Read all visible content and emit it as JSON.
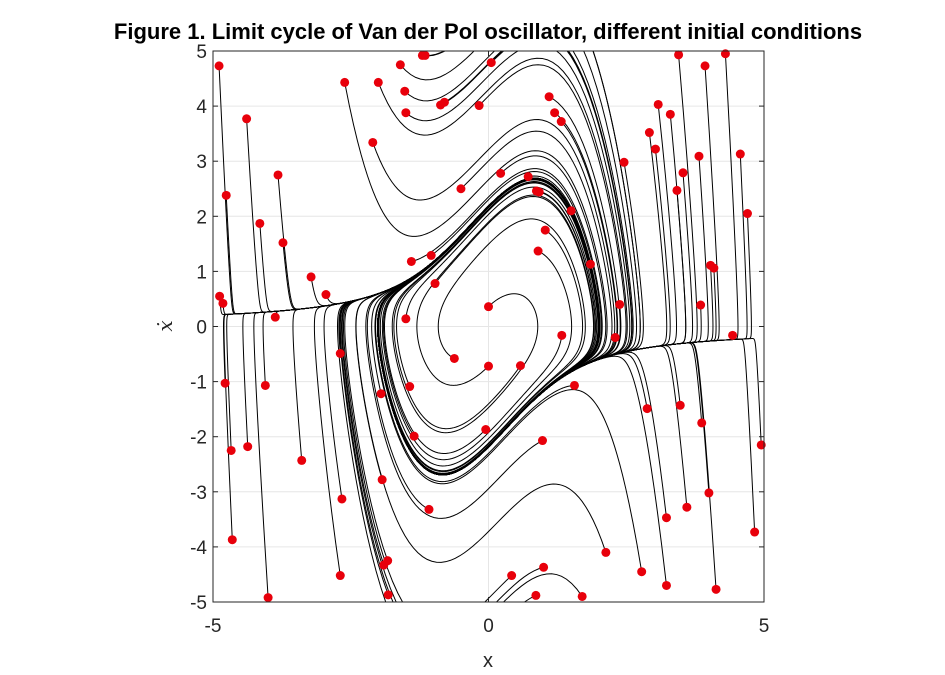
{
  "chart_data": {
    "type": "line",
    "title": "Figure 1. Limit cycle of Van der Pol oscillator, different initial conditions",
    "xlabel": "x",
    "ylabel": "ẋ",
    "xlim": [
      -5,
      5
    ],
    "ylim": [
      -5,
      5
    ],
    "xticks": [
      "-5",
      "0",
      "5"
    ],
    "yticks": [
      "5",
      "4",
      "3",
      "2",
      "1",
      "0",
      "-1",
      "-2",
      "-3",
      "-4",
      "-5"
    ],
    "grid": true,
    "legend": "none",
    "mu": 1,
    "line_color": "#000000",
    "marker_color": "#e8000b",
    "series": [
      {
        "label": "initial conditions",
        "points": [
          [
            -4.89,
            4.73
          ],
          [
            -4.88,
            0.55
          ],
          [
            -4.82,
            0.42
          ],
          [
            -4.76,
            2.38
          ],
          [
            -4.78,
            -1.03
          ],
          [
            -4.67,
            -2.25
          ],
          [
            -4.65,
            -3.87
          ],
          [
            -4.39,
            3.77
          ],
          [
            -4.37,
            -2.18
          ],
          [
            -4.15,
            1.87
          ],
          [
            -4.05,
            -1.07
          ],
          [
            -4.0,
            -4.92
          ],
          [
            -3.82,
            2.75
          ],
          [
            -3.87,
            0.17
          ],
          [
            -3.73,
            1.52
          ],
          [
            -3.39,
            -2.43
          ],
          [
            -3.22,
            0.9
          ],
          [
            -2.95,
            0.58
          ],
          [
            -2.69,
            -0.49
          ],
          [
            -2.66,
            -3.13
          ],
          [
            -2.69,
            -4.52
          ],
          [
            -2.61,
            4.43
          ],
          [
            -2.1,
            3.34
          ],
          [
            -2.0,
            4.43
          ],
          [
            -1.95,
            -1.22
          ],
          [
            -1.93,
            -2.78
          ],
          [
            -1.9,
            -4.33
          ],
          [
            -1.83,
            -4.25
          ],
          [
            -1.82,
            -4.87
          ],
          [
            -1.6,
            4.75
          ],
          [
            -1.52,
            4.27
          ],
          [
            -1.5,
            3.88
          ],
          [
            -1.5,
            0.14
          ],
          [
            -1.43,
            -1.09
          ],
          [
            -1.4,
            1.18
          ],
          [
            -1.35,
            -1.99
          ],
          [
            -1.2,
            4.92
          ],
          [
            -1.15,
            4.92
          ],
          [
            -1.08,
            -3.32
          ],
          [
            -1.04,
            1.29
          ],
          [
            -0.97,
            0.78
          ],
          [
            -0.87,
            4.02
          ],
          [
            -0.8,
            4.07
          ],
          [
            -0.62,
            -0.58
          ],
          [
            -0.5,
            2.5
          ],
          [
            -0.17,
            4.01
          ],
          [
            -0.05,
            -1.87
          ],
          [
            0.0,
            0.36
          ],
          [
            0.0,
            -0.72
          ],
          [
            0.05,
            4.79
          ],
          [
            0.22,
            2.78
          ],
          [
            0.42,
            -4.52
          ],
          [
            0.58,
            -0.71
          ],
          [
            0.72,
            2.72
          ],
          [
            0.87,
            2.46
          ],
          [
            0.9,
            1.37
          ],
          [
            0.92,
            2.44
          ],
          [
            0.98,
            -2.07
          ],
          [
            0.86,
            -4.88
          ],
          [
            1.0,
            -4.37
          ],
          [
            1.03,
            1.75
          ],
          [
            1.1,
            4.17
          ],
          [
            1.2,
            3.88
          ],
          [
            1.32,
            3.72
          ],
          [
            1.33,
            -0.16
          ],
          [
            1.5,
            2.1
          ],
          [
            1.56,
            -1.07
          ],
          [
            1.7,
            -4.9
          ],
          [
            1.85,
            1.13
          ],
          [
            2.13,
            -4.1
          ],
          [
            2.3,
            -0.2
          ],
          [
            2.38,
            0.4
          ],
          [
            2.46,
            2.98
          ],
          [
            2.78,
            -4.45
          ],
          [
            2.88,
            -1.49
          ],
          [
            2.92,
            3.52
          ],
          [
            3.03,
            3.22
          ],
          [
            3.08,
            4.03
          ],
          [
            3.23,
            -3.47
          ],
          [
            3.23,
            -4.7
          ],
          [
            3.3,
            3.85
          ],
          [
            3.42,
            2.47
          ],
          [
            3.48,
            -1.43
          ],
          [
            3.45,
            4.93
          ],
          [
            3.53,
            2.79
          ],
          [
            3.6,
            -3.28
          ],
          [
            3.82,
            3.09
          ],
          [
            3.85,
            0.39
          ],
          [
            3.87,
            -1.75
          ],
          [
            3.93,
            4.73
          ],
          [
            4.0,
            -3.02
          ],
          [
            4.03,
            1.11
          ],
          [
            4.09,
            1.06
          ],
          [
            4.13,
            -4.77
          ],
          [
            4.3,
            4.95
          ],
          [
            4.43,
            -0.16
          ],
          [
            4.57,
            3.13
          ],
          [
            4.7,
            2.05
          ],
          [
            4.83,
            -3.73
          ],
          [
            4.95,
            -2.15
          ]
        ]
      }
    ]
  }
}
